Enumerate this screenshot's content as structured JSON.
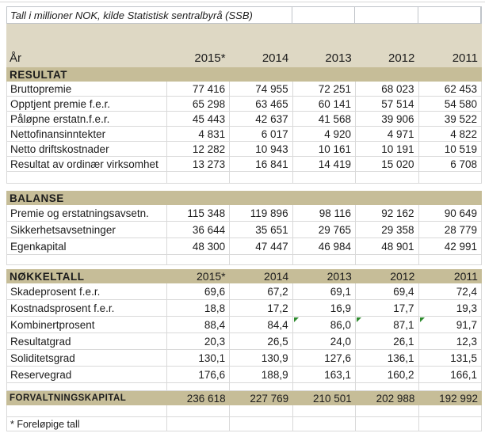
{
  "meta": {
    "title": "Tall i millioner NOK, kilde Statistisk sentralbyrå (SSB)",
    "footnote": "* Foreløpige tall"
  },
  "colors": {
    "panel_tan": "#ded8c4",
    "band_tan": "#c6bd98",
    "grid_gray": "#d9d9d9",
    "text": "#1c1c1c",
    "flag_green": "#2e8b2e"
  },
  "header": {
    "year_label": "År",
    "years": [
      "2015*",
      "2014",
      "2013",
      "2012",
      "2011"
    ]
  },
  "sections": {
    "resultat": {
      "title": "RESULTAT",
      "rows": [
        {
          "label": "Bruttopremie",
          "v": [
            "77 416",
            "74 955",
            "72 251",
            "68 023",
            "62 453"
          ]
        },
        {
          "label": "Opptjent premie f.e.r.",
          "v": [
            "65 298",
            "63 465",
            "60 141",
            "57 514",
            "54 580"
          ]
        },
        {
          "label": "Påløpne erstatn.f.e.r.",
          "v": [
            "45 443",
            "42 637",
            "41 568",
            "39 906",
            "39 522"
          ]
        },
        {
          "label": "Nettofinansinntekter",
          "v": [
            "4 831",
            "6 017",
            "4 920",
            "4 971",
            "4 822"
          ]
        },
        {
          "label": "Netto driftskostnader",
          "v": [
            "12 282",
            "10 943",
            "10 161",
            "10 191",
            "10 519"
          ]
        },
        {
          "label": "Resultat av ordinær virksomhet",
          "v": [
            "13 273",
            "16 841",
            "14 419",
            "15 020",
            "6 708"
          ]
        }
      ]
    },
    "balanse": {
      "title": "BALANSE",
      "rows": [
        {
          "label": "Premie og erstatningsavsetn.",
          "v": [
            "115 348",
            "119 896",
            "98 116",
            "92 162",
            "90 649"
          ]
        },
        {
          "label": "Sikkerhetsavsetninger",
          "v": [
            "36 644",
            "35 651",
            "29 765",
            "29 358",
            "28 779"
          ]
        },
        {
          "label": "Egenkapital",
          "v": [
            "48 300",
            "47 447",
            "46 984",
            "48 901",
            "42 991"
          ]
        }
      ]
    },
    "nokkeltall": {
      "title": "NØKKELTALL",
      "years": [
        "2015*",
        "2014",
        "2013",
        "2012",
        "2011"
      ],
      "rows": [
        {
          "label": "Skadeprosent f.e.r.",
          "v": [
            "69,6",
            "67,2",
            "69,1",
            "69,4",
            "72,4"
          ]
        },
        {
          "label": "Kostnadsprosent f.e.r.",
          "v": [
            "18,8",
            "17,2",
            "16,9",
            "17,7",
            "19,3"
          ]
        },
        {
          "label": "Kombinertprosent",
          "v": [
            "88,4",
            "84,4",
            "86,0",
            "87,1",
            "91,7"
          ]
        },
        {
          "label": "Resultatgrad",
          "v": [
            "20,3",
            "26,5",
            "24,0",
            "26,1",
            "12,3"
          ]
        },
        {
          "label": "Soliditetsgrad",
          "v": [
            "130,1",
            "130,9",
            "127,6",
            "136,1",
            "131,5"
          ]
        },
        {
          "label": "Reservegrad",
          "v": [
            "176,6",
            "188,9",
            "163,1",
            "160,2",
            "166,1"
          ]
        }
      ]
    },
    "forvaltning": {
      "title": "FORVALTNINGSKAPITAL",
      "v": [
        "236 618",
        "227 769",
        "210 501",
        "202 988",
        "192 992"
      ]
    }
  }
}
